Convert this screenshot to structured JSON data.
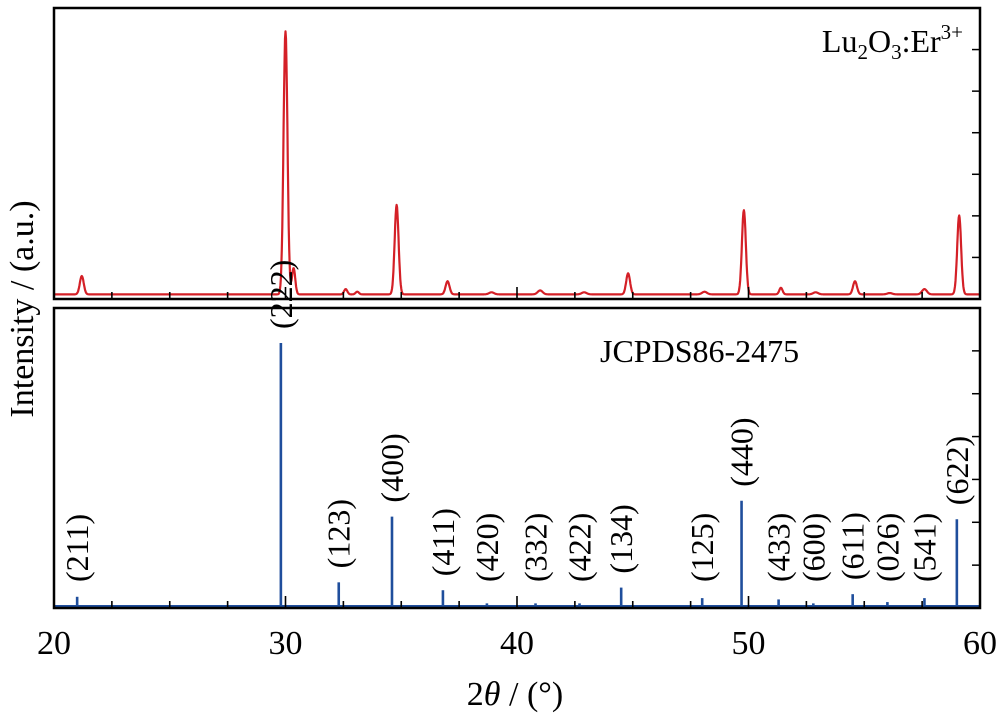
{
  "figure": {
    "ylabel": "Intensity / (a.u.)",
    "xlabel_pre": "2",
    "xlabel_theta": "θ",
    "xlabel_post": " / (°)"
  },
  "chart_data": [
    {
      "type": "line",
      "label_main": "Lu",
      "label_sub1": "2",
      "label_mid": "O",
      "label_sub2": "3",
      "label_post": ":Er",
      "label_sup": "3+",
      "color": "#d42027",
      "xlim": [
        20,
        60
      ],
      "ylim": [
        0,
        100
      ],
      "baseline": 1,
      "peaks": [
        {
          "x": 21.2,
          "h": 7,
          "w": 0.12
        },
        {
          "x": 30.0,
          "h": 100,
          "w": 0.12
        },
        {
          "x": 30.35,
          "h": 10,
          "w": 0.1
        },
        {
          "x": 32.6,
          "h": 2,
          "w": 0.1
        },
        {
          "x": 33.1,
          "h": 1,
          "w": 0.1
        },
        {
          "x": 34.8,
          "h": 34,
          "w": 0.12
        },
        {
          "x": 37.0,
          "h": 5,
          "w": 0.12
        },
        {
          "x": 38.9,
          "h": 0.8,
          "w": 0.15
        },
        {
          "x": 41.0,
          "h": 1.5,
          "w": 0.15
        },
        {
          "x": 42.9,
          "h": 0.8,
          "w": 0.15
        },
        {
          "x": 44.8,
          "h": 8,
          "w": 0.12
        },
        {
          "x": 48.1,
          "h": 1,
          "w": 0.15
        },
        {
          "x": 49.8,
          "h": 32,
          "w": 0.12
        },
        {
          "x": 51.4,
          "h": 2.5,
          "w": 0.1
        },
        {
          "x": 52.9,
          "h": 0.8,
          "w": 0.15
        },
        {
          "x": 54.6,
          "h": 5,
          "w": 0.12
        },
        {
          "x": 56.1,
          "h": 0.5,
          "w": 0.15
        },
        {
          "x": 57.6,
          "h": 2,
          "w": 0.15
        },
        {
          "x": 59.1,
          "h": 30,
          "w": 0.12
        }
      ]
    },
    {
      "type": "bar",
      "label": "JCPDS86-2475",
      "color": "#1f4e9c",
      "xlim": [
        20,
        60
      ],
      "ylim": [
        0,
        100
      ],
      "sticks": [
        {
          "x": 21.0,
          "h": 3.5,
          "hkl": "(211)"
        },
        {
          "x": 29.8,
          "h": 100,
          "hkl": "(222)"
        },
        {
          "x": 32.3,
          "h": 9,
          "hkl": "(123)"
        },
        {
          "x": 34.6,
          "h": 34,
          "hkl": "(400)"
        },
        {
          "x": 36.8,
          "h": 6,
          "hkl": "(411)"
        },
        {
          "x": 38.7,
          "h": 1,
          "hkl": "(420)"
        },
        {
          "x": 40.8,
          "h": 1,
          "hkl": "(332)"
        },
        {
          "x": 42.7,
          "h": 1,
          "hkl": "(422)"
        },
        {
          "x": 44.5,
          "h": 7,
          "hkl": "(134)"
        },
        {
          "x": 48.0,
          "h": 3,
          "hkl": "(125)"
        },
        {
          "x": 49.7,
          "h": 40,
          "hkl": "(440)"
        },
        {
          "x": 51.3,
          "h": 2.5,
          "hkl": "(433)"
        },
        {
          "x": 52.8,
          "h": 1,
          "hkl": "(600)"
        },
        {
          "x": 54.5,
          "h": 4.5,
          "hkl": "(611)"
        },
        {
          "x": 56.0,
          "h": 1.5,
          "hkl": "(026)"
        },
        {
          "x": 57.6,
          "h": 3,
          "hkl": "(541)"
        },
        {
          "x": 59.0,
          "h": 33,
          "hkl": "(622)"
        }
      ]
    }
  ],
  "xaxis": {
    "ticks": [
      20,
      30,
      40,
      50,
      60
    ],
    "tick_labels": [
      "20",
      "30",
      "40",
      "50",
      "60"
    ],
    "minor_step": 2.5
  }
}
